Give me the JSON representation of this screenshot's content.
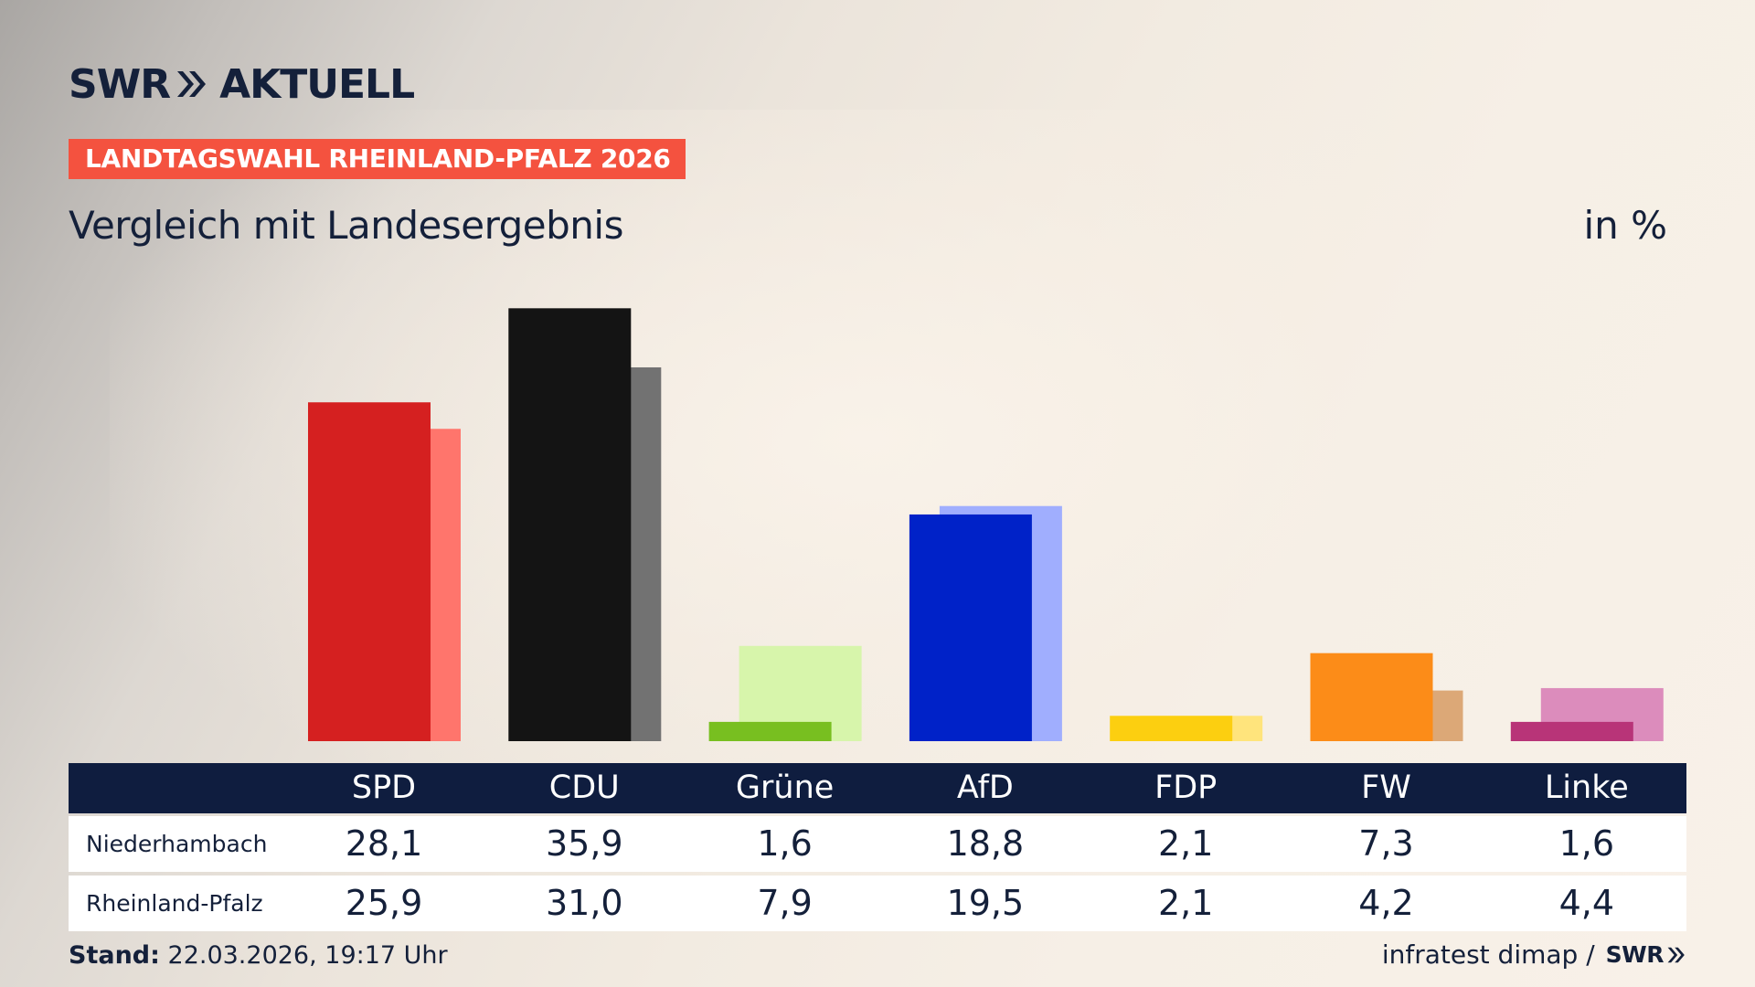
{
  "header": {
    "logo_text": "SWR",
    "logo_suffix": "AKTUELL",
    "badge": "LANDTAGSWAHL RHEINLAND-PFALZ 2026",
    "subtitle": "Vergleich mit Landesergebnis",
    "unit": "in %"
  },
  "colors": {
    "navy": "#14203a",
    "badge_red": "#f4523f",
    "table_header": "#0f1d3f"
  },
  "chart_data": {
    "type": "bar",
    "categories": [
      "SPD",
      "CDU",
      "Grüne",
      "AfD",
      "FDP",
      "FW",
      "Linke"
    ],
    "series": [
      {
        "name": "Niederhambach",
        "values": [
          28.1,
          35.9,
          1.6,
          18.8,
          2.1,
          7.3,
          1.6
        ],
        "colors": [
          "#d52020",
          "#141414",
          "#78bf20",
          "#0022c8",
          "#fccf10",
          "#fc8c18",
          "#b83478"
        ]
      },
      {
        "name": "Rheinland-Pfalz",
        "values": [
          25.9,
          31.0,
          7.9,
          19.5,
          2.1,
          4.2,
          4.4
        ],
        "colors": [
          "#ff756c",
          "#727272",
          "#d7f5ab",
          "#a0aefe",
          "#ffe47c",
          "#dca877",
          "#dc8cbc"
        ]
      }
    ],
    "display_values": [
      [
        "28,1",
        "35,9",
        "1,6",
        "18,8",
        "2,1",
        "7,3",
        "1,6"
      ],
      [
        "25,9",
        "31,0",
        "7,9",
        "19,5",
        "2,1",
        "4,2",
        "4,4"
      ]
    ],
    "ylim": [
      0,
      36
    ],
    "grid": false,
    "legend": "none"
  },
  "footer": {
    "stand_label": "Stand:",
    "stand_value": "22.03.2026, 19:17 Uhr",
    "source": "infratest dimap /",
    "source_logo": "SWR"
  }
}
